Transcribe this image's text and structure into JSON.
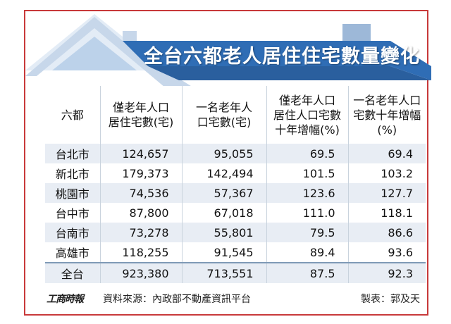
{
  "title": "全台六都老人居住住宅數量變化",
  "headers": [
    [
      "六都"
    ],
    [
      "僅老年人口",
      "居住宅數(宅)"
    ],
    [
      "一名老年人",
      "口宅數(宅)"
    ],
    [
      "僅老年人口",
      "居住人口宅數",
      "十年增幅(%)"
    ],
    [
      "一名老年人口",
      "宅數十年增幅",
      "(%)"
    ]
  ],
  "rows": [
    [
      "台北市",
      "124,657",
      "95,055",
      "69.5",
      "69.4"
    ],
    [
      "新北市",
      "179,373",
      "142,494",
      "101.5",
      "103.2"
    ],
    [
      "桃園市",
      "74,536",
      "57,367",
      "123.6",
      "127.7"
    ],
    [
      "台中市",
      "87,800",
      "67,018",
      "111.0",
      "118.1"
    ],
    [
      "台南市",
      "73,278",
      "55,801",
      "79.5",
      "86.6"
    ],
    [
      "高雄市",
      "118,255",
      "91,545",
      "89.4",
      "93.6"
    ]
  ],
  "total": [
    "全台",
    "923,380",
    "713,551",
    "87.5",
    "92.3"
  ],
  "footer": {
    "logo": "工商時報",
    "source": "資料來源：內政部不動產資訊平台",
    "credit": "製表：郭及天"
  },
  "colors": {
    "border": "#c8393a",
    "banner": "#2f6db5",
    "row_alt": "#e8edf4",
    "roof_light": "#dbe7f3"
  }
}
